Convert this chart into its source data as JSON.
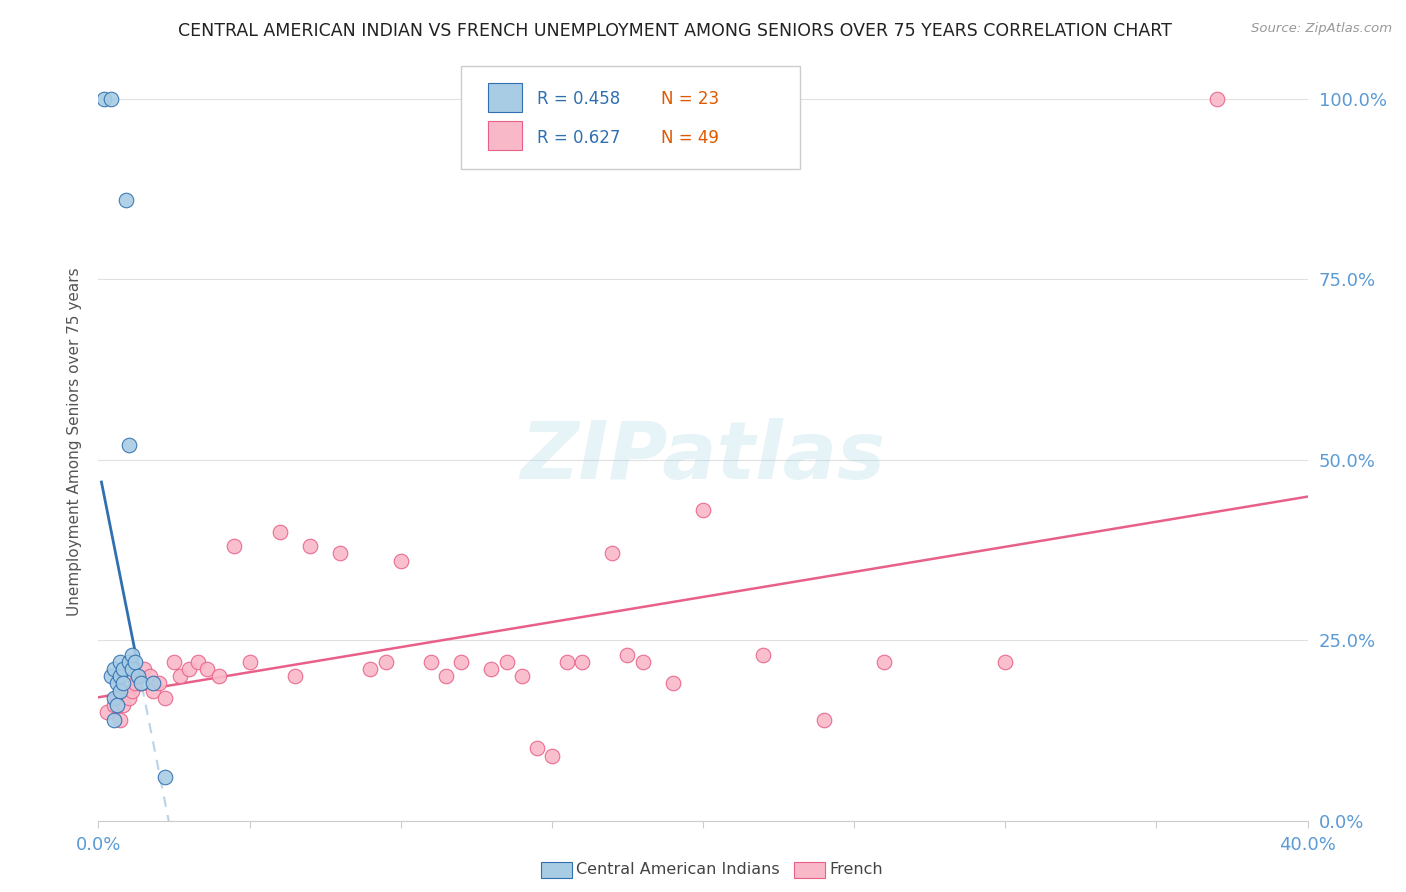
{
  "title": "CENTRAL AMERICAN INDIAN VS FRENCH UNEMPLOYMENT AMONG SENIORS OVER 75 YEARS CORRELATION CHART",
  "source": "Source: ZipAtlas.com",
  "ylabel": "Unemployment Among Seniors over 75 years",
  "xlim": [
    0.0,
    0.4
  ],
  "ylim": [
    0.0,
    1.05
  ],
  "blue_color": "#a8cce4",
  "pink_color": "#f9b8c8",
  "blue_line_color": "#3070b0",
  "pink_line_color": "#e8608a",
  "blue_dash_color": "#b8d4e8",
  "watermark": "ZIPatlas",
  "blue_r": "0.458",
  "blue_n": "23",
  "pink_r": "0.627",
  "pink_n": "49",
  "r_color": "#3070b0",
  "n_color": "#e05800",
  "blue_x": [
    0.002,
    0.004,
    0.004,
    0.005,
    0.005,
    0.005,
    0.006,
    0.006,
    0.007,
    0.007,
    0.007,
    0.008,
    0.008,
    0.009,
    0.01,
    0.01,
    0.011,
    0.011,
    0.012,
    0.013,
    0.014,
    0.022,
    0.018
  ],
  "blue_y": [
    1.0,
    1.0,
    0.2,
    0.21,
    0.17,
    0.14,
    0.19,
    0.16,
    0.2,
    0.22,
    0.18,
    0.21,
    0.19,
    0.86,
    0.52,
    0.22,
    0.21,
    0.23,
    0.22,
    0.2,
    0.19,
    0.06,
    0.19
  ],
  "pink_x": [
    0.003,
    0.005,
    0.006,
    0.007,
    0.008,
    0.01,
    0.011,
    0.012,
    0.013,
    0.015,
    0.017,
    0.018,
    0.02,
    0.022,
    0.025,
    0.027,
    0.03,
    0.033,
    0.036,
    0.04,
    0.045,
    0.05,
    0.06,
    0.065,
    0.07,
    0.08,
    0.09,
    0.095,
    0.1,
    0.11,
    0.115,
    0.12,
    0.13,
    0.135,
    0.14,
    0.145,
    0.15,
    0.155,
    0.16,
    0.17,
    0.175,
    0.18,
    0.19,
    0.2,
    0.22,
    0.24,
    0.26,
    0.3,
    0.37
  ],
  "pink_y": [
    0.15,
    0.16,
    0.17,
    0.14,
    0.16,
    0.17,
    0.18,
    0.19,
    0.2,
    0.21,
    0.2,
    0.18,
    0.19,
    0.17,
    0.22,
    0.2,
    0.21,
    0.22,
    0.21,
    0.2,
    0.38,
    0.22,
    0.4,
    0.2,
    0.38,
    0.37,
    0.21,
    0.22,
    0.36,
    0.22,
    0.2,
    0.22,
    0.21,
    0.22,
    0.2,
    0.1,
    0.09,
    0.22,
    0.22,
    0.37,
    0.23,
    0.22,
    0.19,
    0.43,
    0.23,
    0.14,
    0.22,
    0.22,
    1.0
  ]
}
